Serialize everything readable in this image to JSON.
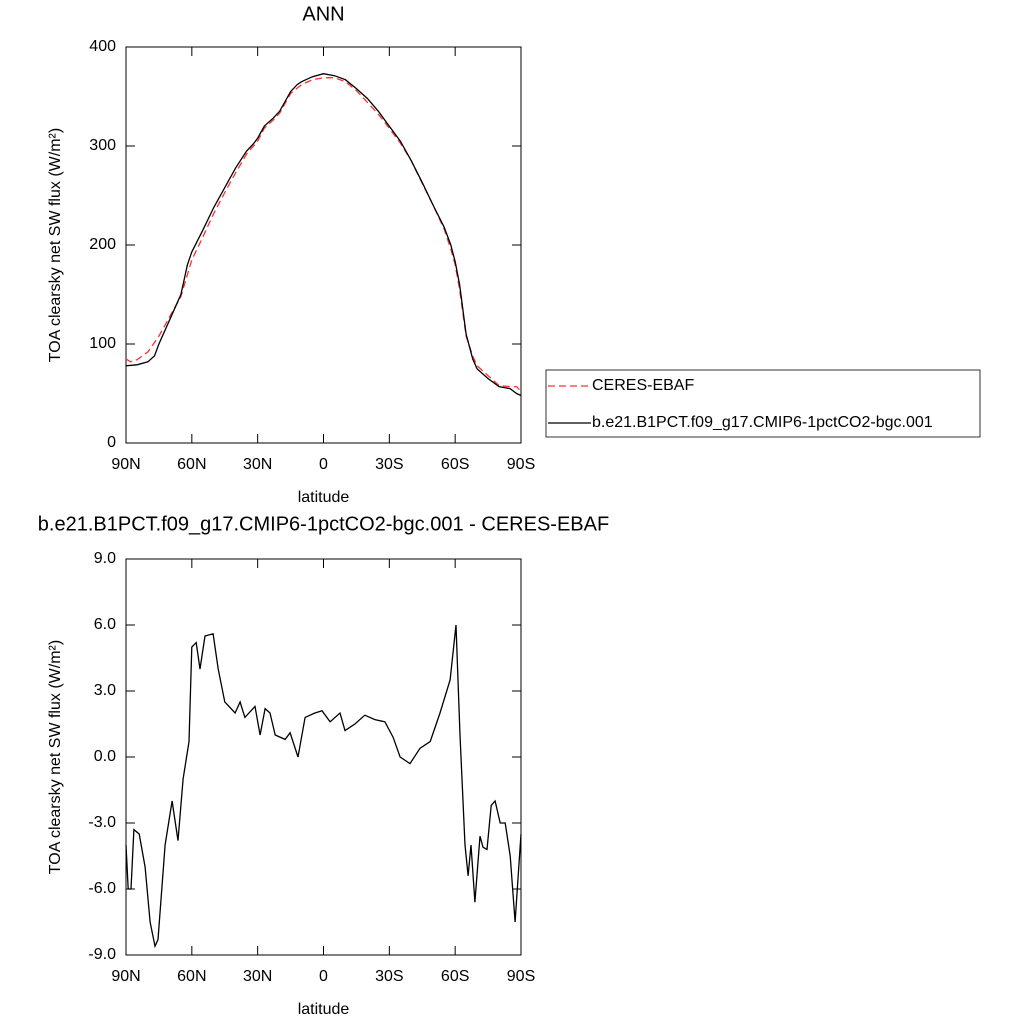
{
  "chart_data": [
    {
      "type": "line",
      "title": "ANN",
      "xlabel": "latitude",
      "ylabel": "TOA clearsky net SW flux (W/m²)",
      "xlim": [
        90,
        -90
      ],
      "ylim": [
        0,
        400
      ],
      "xticks": [
        {
          "value": 90,
          "label": "90N"
        },
        {
          "value": 60,
          "label": "60N"
        },
        {
          "value": 30,
          "label": "30N"
        },
        0,
        {
          "value": -30,
          "label": "30S"
        },
        {
          "value": -60,
          "label": "60S"
        },
        {
          "value": -90,
          "label": "90S"
        }
      ],
      "yticks": [
        0,
        100,
        200,
        300,
        400
      ],
      "legend": "right",
      "series": [
        {
          "name": "CERES-EBAF",
          "color": "#ff3030",
          "style": "dashed",
          "x": [
            90,
            88,
            85,
            80,
            75,
            70,
            65,
            60,
            55,
            50,
            45,
            40,
            35,
            30,
            27,
            23,
            20,
            15,
            10,
            5,
            0,
            -5,
            -10,
            -15,
            -20,
            -25,
            -30,
            -35,
            -40,
            -45,
            -50,
            -55,
            -58,
            -60,
            -62,
            -65,
            -68,
            -70,
            -75,
            -80,
            -85,
            -88,
            -90
          ],
          "values": [
            85,
            82,
            84,
            92,
            108,
            128,
            148,
            185,
            208,
            232,
            253,
            273,
            292,
            305,
            318,
            326,
            333,
            353,
            362,
            367,
            369,
            369,
            365,
            356,
            344,
            332,
            318,
            303,
            285,
            262,
            240,
            216,
            196,
            180,
            155,
            108,
            88,
            78,
            68,
            58,
            57,
            57,
            52
          ]
        },
        {
          "name": "b.e21.B1PCT.f09_g17.CMIP6-1pctCO2-bgc.001",
          "color": "#000000",
          "style": "solid",
          "x": [
            90,
            85,
            80,
            77,
            75,
            70,
            65,
            62,
            60,
            55,
            50,
            45,
            40,
            35,
            32,
            30,
            27,
            23,
            20,
            15,
            12,
            10,
            5,
            0,
            -5,
            -10,
            -15,
            -20,
            -25,
            -30,
            -35,
            -40,
            -45,
            -50,
            -55,
            -58,
            -60,
            -62,
            -65,
            -68,
            -70,
            -75,
            -80,
            -85,
            -88,
            -90
          ],
          "values": [
            78,
            79,
            82,
            88,
            100,
            125,
            150,
            180,
            193,
            215,
            238,
            258,
            278,
            295,
            302,
            308,
            320,
            328,
            335,
            355,
            362,
            365,
            370,
            373,
            371,
            367,
            358,
            348,
            335,
            320,
            305,
            285,
            263,
            240,
            218,
            200,
            183,
            160,
            110,
            85,
            75,
            65,
            57,
            55,
            50,
            48
          ]
        }
      ]
    },
    {
      "type": "line",
      "title": "b.e21.B1PCT.f09_g17.CMIP6-1pctCO2-bgc.001 - CERES-EBAF",
      "xlabel": "latitude",
      "ylabel": "TOA clearsky net SW flux (W/m²)",
      "xlim": [
        90,
        -90
      ],
      "ylim": [
        -9,
        9
      ],
      "xticks": [
        {
          "value": 90,
          "label": "90N"
        },
        {
          "value": 60,
          "label": "60N"
        },
        {
          "value": 30,
          "label": "30N"
        },
        0,
        {
          "value": -30,
          "label": "30S"
        },
        {
          "value": -60,
          "label": "60S"
        },
        {
          "value": -90,
          "label": "90S"
        }
      ],
      "yticks": [
        {
          "value": -9,
          "label": "-9.0"
        },
        {
          "value": -6,
          "label": "-6.0"
        },
        {
          "value": -3,
          "label": "-3.0"
        },
        {
          "value": 0,
          "label": "0.0"
        },
        {
          "value": 3,
          "label": "3.0"
        },
        {
          "value": 6,
          "label": "6.0"
        },
        {
          "value": 9,
          "label": "9.0"
        }
      ],
      "series": [
        {
          "color": "#000000",
          "style": "solid",
          "x": [
            90,
            89,
            87.7,
            86.4,
            84,
            81.3,
            79,
            76.8,
            75.4,
            72.2,
            69,
            66.3,
            64,
            61.3,
            60,
            58,
            56.3,
            54,
            50.3,
            48,
            45,
            40.3,
            38,
            35.8,
            31.2,
            28.9,
            26.6,
            24.4,
            22,
            17.5,
            15.2,
            11.6,
            8.4,
            3.9,
            0.7,
            -3,
            -7.5,
            -9.8,
            -14.3,
            -18.8,
            -23.4,
            -28,
            -31.7,
            -34.9,
            -39.4,
            -44,
            -48.6,
            -53.1,
            -57.7,
            -60.4,
            -62.2,
            -64.5,
            -65.9,
            -67.2,
            -69,
            -71.3,
            -72.7,
            -74.5,
            -76.4,
            -78.2,
            -80.5,
            -82.8,
            -85.1,
            -87.3,
            -90
          ],
          "values": [
            -4,
            -6,
            -6,
            -3.3,
            -3.5,
            -5,
            -7.5,
            -8.6,
            -8.3,
            -4,
            -2,
            -3.8,
            -1,
            0.7,
            5,
            5.2,
            4,
            5.5,
            5.6,
            4,
            2.5,
            2,
            2.5,
            1.8,
            2.3,
            1,
            2.2,
            2,
            1,
            0.8,
            1.1,
            0,
            1.8,
            2,
            2.1,
            1.6,
            2,
            1.2,
            1.5,
            1.9,
            1.7,
            1.6,
            0.9,
            0,
            -0.3,
            0.4,
            0.7,
            2,
            3.5,
            6,
            1,
            -4,
            -5.4,
            -4,
            -6.6,
            -3.6,
            -4.1,
            -4.2,
            -2.2,
            -2,
            -3,
            -3,
            -4.5,
            -7.5,
            -3.5
          ]
        }
      ]
    }
  ]
}
